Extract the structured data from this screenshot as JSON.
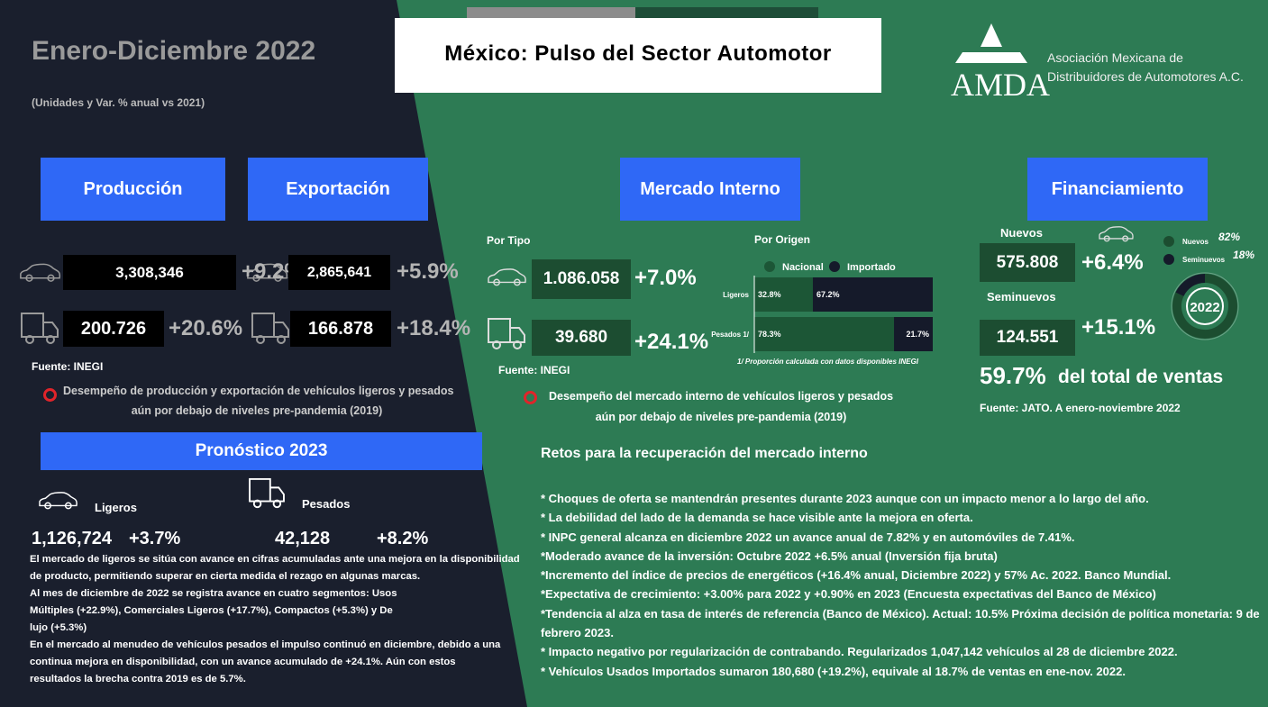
{
  "header": {
    "period": "Enero-Diciembre 2022",
    "subtitle": "(Unidades y Var. % anual vs 2021)",
    "title": "México: Pulso del Sector Automotor",
    "logo_text": "AMDA",
    "org_name": [
      "Asociación Mexicana de",
      "Distribuidores de Automotores A.C."
    ]
  },
  "produccion": {
    "heading": "Producción",
    "ligeros": {
      "value": "3,308,346",
      "change": "+9.2%"
    },
    "pesados": {
      "value": "200.726",
      "change": "+20.6%"
    }
  },
  "exportacion": {
    "heading": "Exportación",
    "ligeros": {
      "value": "2,865,641",
      "change": "+5.9%"
    },
    "pesados": {
      "value": "166.878",
      "change": "+18.4%"
    }
  },
  "left_source": "Fuente: INEGI",
  "left_note": [
    "Desempeño de producción y exportación de vehículos ligeros y pesados",
    "aún por debajo de niveles pre-pandemia (2019)"
  ],
  "pronostico": {
    "heading": "Pronóstico 2023",
    "ligeros": {
      "label": "Ligeros",
      "value": "1,126,724",
      "change": "+3.7%"
    },
    "pesados": {
      "label": "Pesados",
      "value": "42,128",
      "change": "+8.2%"
    },
    "paragraphs": [
      "El mercado de ligeros se sitúa con avance en cifras acumuladas ante una mejora en la disponibilidad de producto, permitiendo superar en cierta medida el rezago en algunas marcas.",
      "Al mes de diciembre de 2022 se registra avance en cuatro segmentos: Usos Múltiples (+22.9%), Comerciales Ligeros  (+17.7%), Compactos (+5.3%) y De lujo (+5.3%)",
      "En el mercado al menudeo de vehículos pesados el impulso continuó en diciembre, debido a una continua mejora en disponibilidad, con un avance acumulado de +24.1%. Aún con estos resultados la brecha contra 2019 es de 5.7%."
    ]
  },
  "mercado_interno": {
    "heading": "Mercado Interno",
    "por_tipo": {
      "title": "Por Tipo",
      "ligeros": {
        "value": "1.086.058",
        "change": "+7.0%"
      },
      "pesados": {
        "value": "39.680",
        "change": "+24.1%"
      }
    },
    "source": "Fuente: INEGI",
    "por_origen": {
      "title": "Por Origen",
      "series": [
        {
          "name": "Nacional",
          "color": "#1c5636"
        },
        {
          "name": "Importado",
          "color": "#151a2a"
        }
      ],
      "rows": [
        {
          "label": "Ligeros",
          "values": [
            32.8,
            67.2
          ],
          "value_labels": [
            "32.8%",
            "67.2%"
          ]
        },
        {
          "label": "Pesados 1/",
          "values": [
            78.3,
            21.7
          ],
          "value_labels": [
            "78.3%",
            "21.7%"
          ]
        }
      ],
      "footnote": "1/ Proporción calculada con datos disponibles INEGI"
    },
    "note": [
      "Desempeño del mercado interno de vehículos ligeros y pesados",
      "aún por debajo de niveles pre-pandemia (2019)"
    ]
  },
  "financiamiento": {
    "heading": "Financiamiento",
    "nuevos": {
      "label": "Nuevos",
      "value": "575.808",
      "change": "+6.4%"
    },
    "seminuevos": {
      "label": "Seminuevos",
      "value": "124.551",
      "change": "+15.1%"
    },
    "donut": {
      "center_label": "2022",
      "segments": [
        {
          "name": "Nuevos",
          "value": 82,
          "value_label": "82%",
          "color": "#1c4d30"
        },
        {
          "name": "Seminuevos",
          "value": 18,
          "value_label": "18%",
          "color": "#151a2a"
        }
      ]
    },
    "share": {
      "value": "59.7%",
      "text": "del total de ventas"
    },
    "source": "Fuente: JATO. A enero-noviembre 2022"
  },
  "retos": {
    "title": "Retos para la recuperación del mercado interno",
    "items": [
      "* Choques de oferta se mantendrán presentes durante 2023 aunque con un impacto menor a lo largo del año.",
      "* La debilidad del lado de la demanda se hace visible ante la mejora en oferta.",
      "* INPC general alcanza en diciembre 2022 un avance anual de 7.82% y en automóviles de 7.41%.",
      "*Moderado avance de la inversión: Octubre 2022 +6.5% anual (Inversión fija bruta)",
      "*Incremento del índice de precios de energéticos (+16.4% anual, Diciembre 2022) y 57% Ac. 2022. Banco Mundial.",
      "*Expectativa de crecimiento: +3.00% para 2022 y +0.90% en 2023 (Encuesta expectativas del Banco de México)",
      "*Tendencia al alza en tasa de interés de referencia (Banco de México). Actual: 10.5% Próxima decisión de política monetaria: 9 de febrero 2023.",
      "* Impacto negativo por regularización de contrabando. Regularizados 1,047,142 vehículos al 28 de diciembre 2022.",
      "* Vehículos Usados Importados sumaron 180,680 (+19.2%), equivale al 18.7% de ventas en ene-nov. 2022."
    ]
  }
}
